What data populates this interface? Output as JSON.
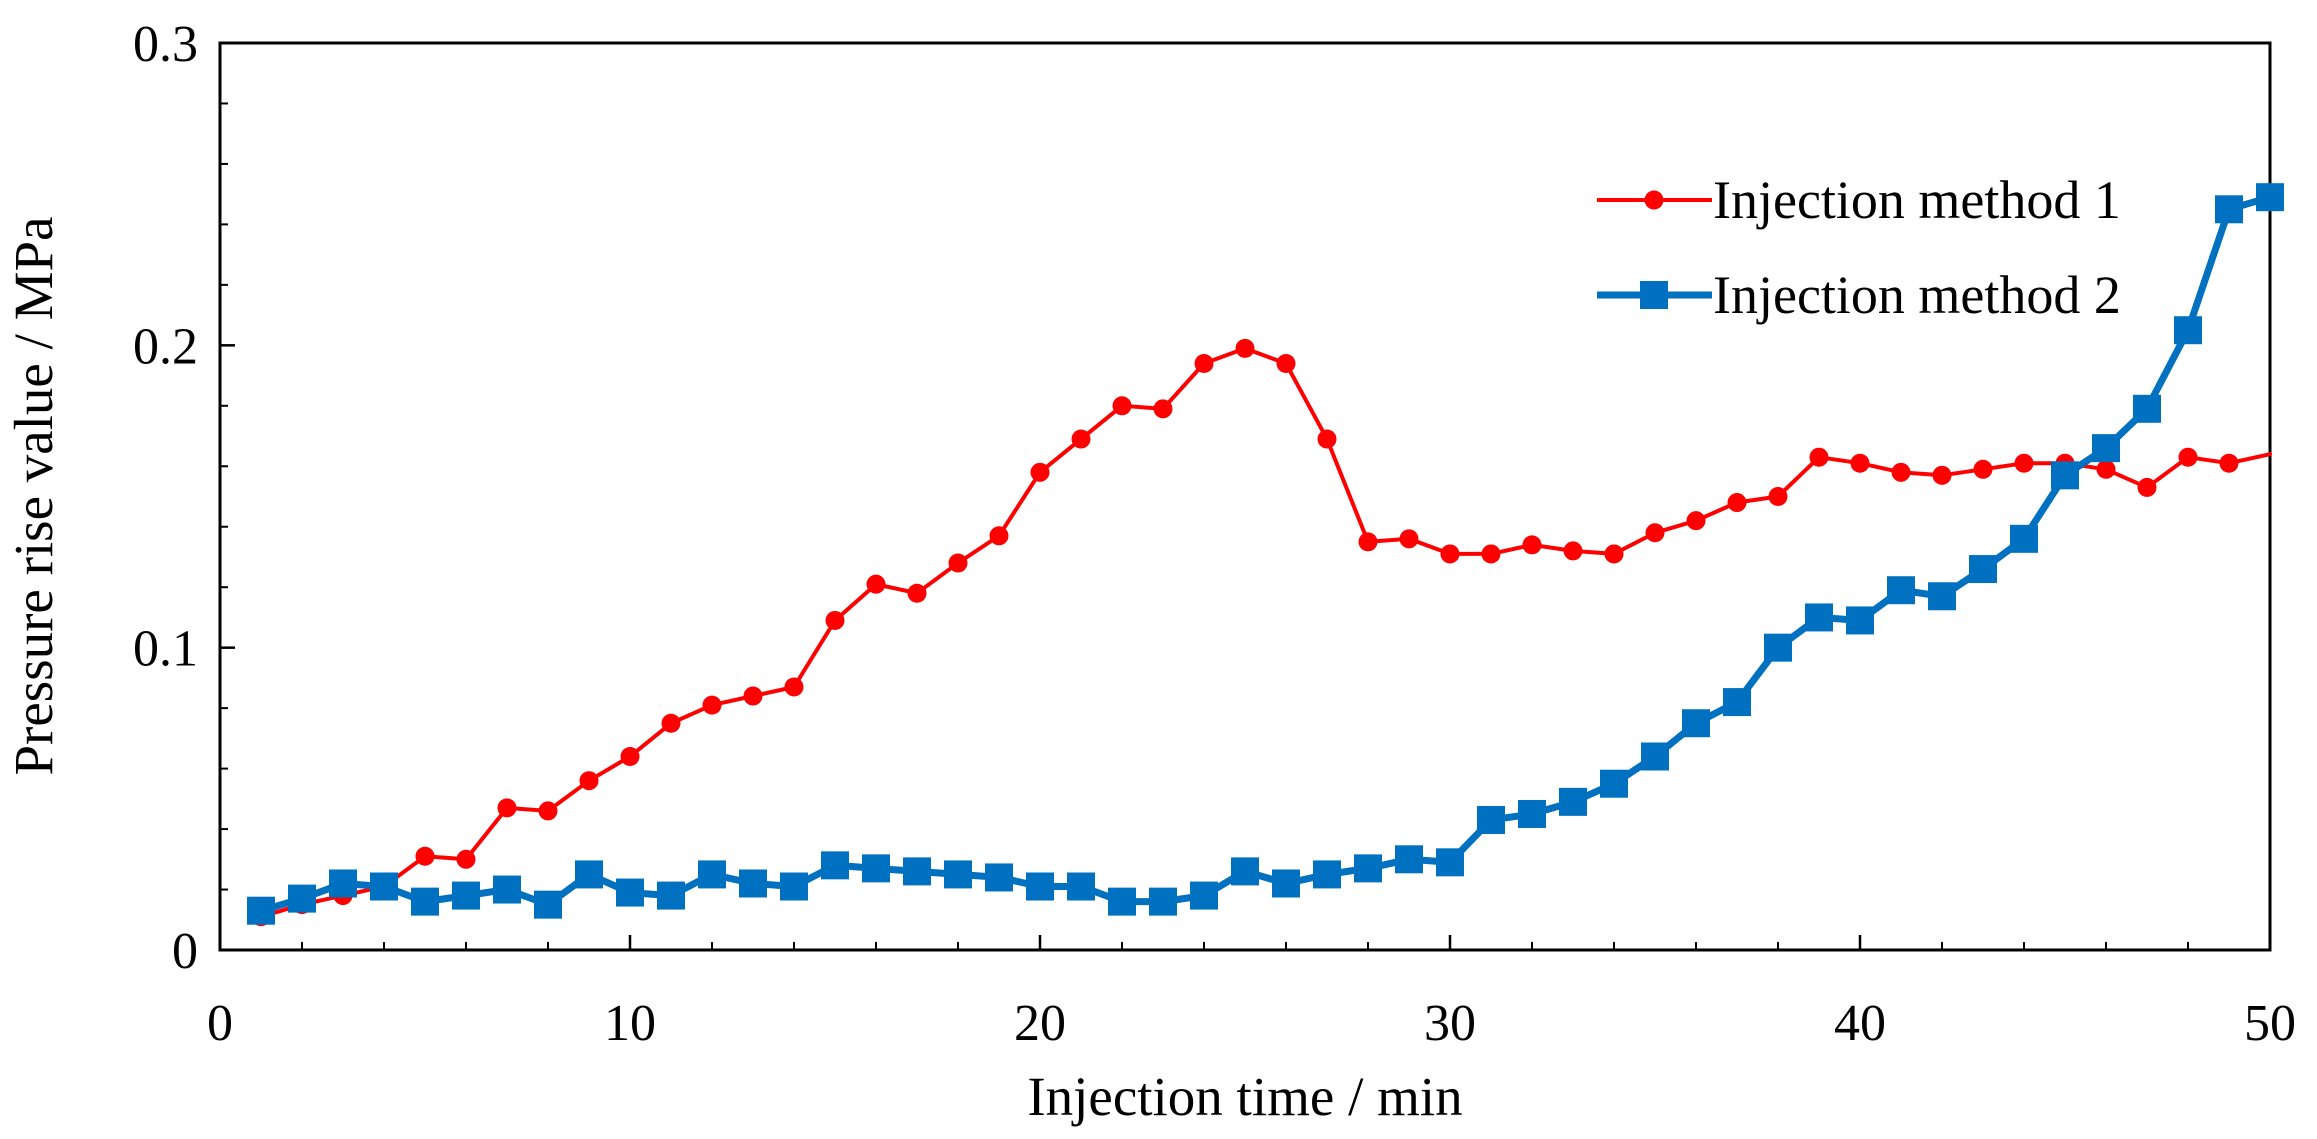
{
  "chart_data": {
    "type": "line",
    "title": "",
    "xlabel": "Injection time / min",
    "ylabel": "Pressure rise value / MPa",
    "xlim": [
      0,
      50
    ],
    "ylim": [
      0,
      0.3
    ],
    "x_ticks": [
      0,
      10,
      20,
      30,
      40,
      50
    ],
    "x_tick_labels": [
      "0",
      "10",
      "20",
      "30",
      "40",
      "50"
    ],
    "y_ticks": [
      0,
      0.1,
      0.2,
      0.3
    ],
    "y_tick_labels": [
      "0",
      "0.1",
      "0.2",
      "0.3"
    ],
    "x_minor_step": 2,
    "y_minor_step": 0.02,
    "grid": false,
    "legend_position": "top-right",
    "series": [
      {
        "name": "Injection method 1",
        "color": "#ff0000",
        "marker": "circle",
        "x": [
          1,
          2,
          3,
          4,
          5,
          6,
          7,
          8,
          9,
          10,
          11,
          12,
          13,
          14,
          15,
          16,
          17,
          18,
          19,
          20,
          21,
          22,
          23,
          24,
          25,
          26,
          27,
          28,
          29,
          30,
          31,
          32,
          33,
          34,
          35,
          36,
          37,
          38,
          39,
          40,
          41,
          42,
          43,
          44,
          45,
          46,
          47,
          48,
          49,
          50
        ],
        "y": [
          0.011,
          0.015,
          0.018,
          0.021,
          0.031,
          0.03,
          0.047,
          0.046,
          0.056,
          0.064,
          0.075,
          0.081,
          0.084,
          0.087,
          0.109,
          0.121,
          0.118,
          0.128,
          0.137,
          0.158,
          0.169,
          0.18,
          0.179,
          0.194,
          0.199,
          0.194,
          0.169,
          0.135,
          0.136,
          0.131,
          0.131,
          0.134,
          0.132,
          0.131,
          0.138,
          0.142,
          0.148,
          0.15,
          0.163,
          0.161,
          0.158,
          0.157,
          0.159,
          0.161,
          0.161,
          0.159,
          0.153,
          0.163,
          0.161,
          0.164
        ],
        "marker_flags": [
          1,
          1,
          1,
          1,
          1,
          1,
          1,
          1,
          1,
          1,
          1,
          1,
          1,
          1,
          1,
          1,
          1,
          1,
          1,
          1,
          1,
          1,
          1,
          1,
          1,
          1,
          1,
          1,
          1,
          1,
          1,
          1,
          1,
          1,
          1,
          1,
          1,
          1,
          1,
          1,
          1,
          1,
          1,
          1,
          1,
          1,
          1,
          1,
          1,
          0
        ]
      },
      {
        "name": "Injection method 2",
        "color": "#0070c0",
        "marker": "square",
        "x": [
          1,
          2,
          3,
          4,
          5,
          6,
          7,
          8,
          9,
          10,
          11,
          12,
          13,
          14,
          15,
          16,
          17,
          18,
          19,
          20,
          21,
          22,
          23,
          24,
          25,
          26,
          27,
          28,
          29,
          30,
          31,
          32,
          33,
          34,
          35,
          36,
          37,
          38,
          39,
          40,
          41,
          42,
          43,
          44,
          45,
          46,
          47,
          48,
          49,
          50
        ],
        "y": [
          0.013,
          0.017,
          0.022,
          0.021,
          0.016,
          0.018,
          0.02,
          0.015,
          0.025,
          0.019,
          0.018,
          0.025,
          0.022,
          0.021,
          0.028,
          0.027,
          0.026,
          0.025,
          0.024,
          0.021,
          0.021,
          0.016,
          0.016,
          0.018,
          0.026,
          0.022,
          0.025,
          0.027,
          0.03,
          0.029,
          0.043,
          0.045,
          0.049,
          0.055,
          0.064,
          0.075,
          0.082,
          0.1,
          0.11,
          0.109,
          0.119,
          0.117,
          0.126,
          0.136,
          0.157,
          0.166,
          0.179,
          0.205,
          0.245,
          0.249
        ],
        "marker_flags": [
          1,
          1,
          1,
          1,
          1,
          1,
          1,
          1,
          1,
          1,
          1,
          1,
          1,
          1,
          1,
          1,
          1,
          1,
          1,
          1,
          1,
          1,
          1,
          1,
          1,
          1,
          1,
          1,
          1,
          1,
          1,
          1,
          1,
          1,
          1,
          1,
          1,
          1,
          1,
          1,
          1,
          1,
          1,
          1,
          1,
          1,
          1,
          1,
          1,
          1
        ]
      }
    ]
  }
}
